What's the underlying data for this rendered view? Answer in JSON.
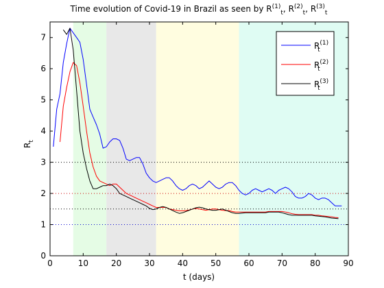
{
  "chart_data": {
    "type": "line",
    "title": {
      "prefix": "Time evolution of Covid-19 in Brazil as seen by ",
      "sub": "t",
      "sup1": "(1)",
      "sup2": "(2)",
      "sup3": "(3)",
      "sep": ", "
    },
    "title_base": "R",
    "xlabel": "t (days)",
    "ylabel": "R",
    "ylabel_sub": "t",
    "xlim": [
      0,
      90
    ],
    "ylim": [
      0,
      7.5
    ],
    "xticks": [
      0,
      10,
      20,
      30,
      40,
      50,
      60,
      70,
      80,
      90
    ],
    "yticks": [
      0,
      1,
      2,
      3,
      4,
      5,
      6,
      7
    ],
    "phases": [
      {
        "x0": 7,
        "x1": 17,
        "color": "#e5fce5"
      },
      {
        "x0": 17,
        "x1": 32,
        "color": "#e8e8e8"
      },
      {
        "x0": 32,
        "x1": 57,
        "color": "#fffde0"
      },
      {
        "x0": 57,
        "x1": 90,
        "color": "#dffcf3"
      }
    ],
    "reference_lines": [
      {
        "y": 3.0,
        "color": "#000000"
      },
      {
        "y": 2.0,
        "color": "#cc0000"
      },
      {
        "y": 1.5,
        "color": "#000000"
      },
      {
        "y": 1.0,
        "color": "#0000cc"
      }
    ],
    "legend": {
      "position": "top-right",
      "entries": [
        {
          "base": "R",
          "sub": "t",
          "sup": "(1)",
          "color": "#0000ff"
        },
        {
          "base": "R",
          "sub": "t",
          "sup": "(2)",
          "color": "#ff0000"
        },
        {
          "base": "R",
          "sub": "t",
          "sup": "(3)",
          "color": "#000000"
        }
      ]
    },
    "series": [
      {
        "color": "#0000ff",
        "x": [
          1,
          2,
          3,
          4,
          5,
          6,
          7,
          8,
          9,
          10,
          11,
          12,
          13,
          14,
          15,
          16,
          17,
          18,
          19,
          20,
          21,
          22,
          23,
          24,
          25,
          26,
          27,
          28,
          29,
          30,
          31,
          32,
          33,
          34,
          35,
          36,
          37,
          38,
          39,
          40,
          41,
          42,
          43,
          44,
          45,
          46,
          47,
          48,
          49,
          50,
          51,
          52,
          53,
          54,
          55,
          56,
          57,
          58,
          59,
          60,
          61,
          62,
          63,
          64,
          65,
          66,
          67,
          68,
          69,
          70,
          71,
          72,
          73,
          74,
          75,
          76,
          77,
          78,
          79,
          80,
          81,
          82,
          83,
          84,
          85,
          86,
          87,
          88
        ],
        "y": [
          3.5,
          4.7,
          5.2,
          6.2,
          6.8,
          7.3,
          7.15,
          7.0,
          6.85,
          6.3,
          5.5,
          4.7,
          4.45,
          4.2,
          3.9,
          3.45,
          3.5,
          3.65,
          3.75,
          3.75,
          3.7,
          3.45,
          3.1,
          3.05,
          3.1,
          3.15,
          3.15,
          2.95,
          2.65,
          2.5,
          2.4,
          2.35,
          2.4,
          2.45,
          2.5,
          2.5,
          2.4,
          2.25,
          2.15,
          2.1,
          2.15,
          2.25,
          2.3,
          2.25,
          2.15,
          2.2,
          2.3,
          2.4,
          2.3,
          2.2,
          2.15,
          2.2,
          2.3,
          2.35,
          2.35,
          2.25,
          2.1,
          2.0,
          1.95,
          2.0,
          2.1,
          2.15,
          2.1,
          2.05,
          2.1,
          2.15,
          2.1,
          2.0,
          2.1,
          2.15,
          2.2,
          2.15,
          2.05,
          1.9,
          1.85,
          1.85,
          1.9,
          2.0,
          1.95,
          1.85,
          1.8,
          1.85,
          1.85,
          1.8,
          1.7,
          1.6,
          1.6,
          1.6
        ]
      },
      {
        "color": "#ff0000",
        "x": [
          3,
          4,
          5,
          6,
          7,
          8,
          9,
          10,
          11,
          12,
          13,
          14,
          15,
          16,
          17,
          18,
          19,
          20,
          21,
          22,
          23,
          24,
          25,
          26,
          27,
          28,
          29,
          30,
          31,
          32,
          33,
          34,
          35,
          36,
          37,
          38,
          39,
          40,
          41,
          42,
          43,
          44,
          45,
          46,
          47,
          48,
          49,
          50,
          51,
          52,
          53,
          54,
          55,
          56,
          57,
          58,
          59,
          60,
          61,
          62,
          63,
          64,
          65,
          66,
          67,
          68,
          69,
          70,
          71,
          72,
          73,
          74,
          75,
          76,
          77,
          78,
          79,
          80,
          81,
          82,
          83,
          84,
          85,
          86,
          87
        ],
        "y": [
          3.65,
          4.8,
          5.4,
          5.9,
          6.2,
          6.1,
          5.55,
          4.8,
          4.0,
          3.3,
          2.85,
          2.55,
          2.4,
          2.35,
          2.3,
          2.25,
          2.3,
          2.3,
          2.2,
          2.1,
          2.0,
          1.95,
          1.9,
          1.85,
          1.8,
          1.75,
          1.7,
          1.65,
          1.6,
          1.55,
          1.55,
          1.55,
          1.55,
          1.5,
          1.48,
          1.46,
          1.44,
          1.44,
          1.45,
          1.47,
          1.5,
          1.52,
          1.5,
          1.48,
          1.46,
          1.48,
          1.5,
          1.5,
          1.48,
          1.46,
          1.45,
          1.45,
          1.42,
          1.4,
          1.4,
          1.4,
          1.4,
          1.4,
          1.4,
          1.4,
          1.4,
          1.4,
          1.4,
          1.42,
          1.42,
          1.42,
          1.42,
          1.42,
          1.4,
          1.38,
          1.35,
          1.33,
          1.32,
          1.32,
          1.32,
          1.32,
          1.32,
          1.3,
          1.3,
          1.28,
          1.27,
          1.26,
          1.25,
          1.23,
          1.22
        ]
      },
      {
        "color": "#000000",
        "x": [
          4,
          5,
          6,
          7,
          8,
          9,
          10,
          11,
          12,
          13,
          14,
          15,
          16,
          17,
          18,
          19,
          20,
          21,
          22,
          23,
          24,
          25,
          26,
          27,
          28,
          29,
          30,
          31,
          32,
          33,
          34,
          35,
          36,
          37,
          38,
          39,
          40,
          41,
          42,
          43,
          44,
          45,
          46,
          47,
          48,
          49,
          50,
          51,
          52,
          53,
          54,
          55,
          56,
          57,
          58,
          59,
          60,
          61,
          62,
          63,
          64,
          65,
          66,
          67,
          68,
          69,
          70,
          71,
          72,
          73,
          74,
          75,
          76,
          77,
          78,
          79,
          80,
          81,
          82,
          83,
          84,
          85,
          86,
          87
        ],
        "y": [
          7.25,
          7.1,
          7.3,
          6.6,
          5.3,
          4.0,
          3.3,
          2.8,
          2.4,
          2.15,
          2.15,
          2.2,
          2.25,
          2.25,
          2.3,
          2.25,
          2.15,
          2.0,
          1.95,
          1.9,
          1.85,
          1.8,
          1.75,
          1.7,
          1.65,
          1.6,
          1.52,
          1.48,
          1.5,
          1.55,
          1.58,
          1.55,
          1.5,
          1.45,
          1.4,
          1.36,
          1.38,
          1.42,
          1.46,
          1.5,
          1.54,
          1.56,
          1.54,
          1.5,
          1.48,
          1.46,
          1.46,
          1.48,
          1.5,
          1.46,
          1.42,
          1.38,
          1.36,
          1.36,
          1.37,
          1.38,
          1.38,
          1.38,
          1.38,
          1.38,
          1.38,
          1.38,
          1.4,
          1.4,
          1.4,
          1.4,
          1.38,
          1.35,
          1.32,
          1.3,
          1.3,
          1.3,
          1.3,
          1.3,
          1.3,
          1.3,
          1.28,
          1.27,
          1.26,
          1.25,
          1.23,
          1.21,
          1.2,
          1.19
        ]
      }
    ]
  }
}
